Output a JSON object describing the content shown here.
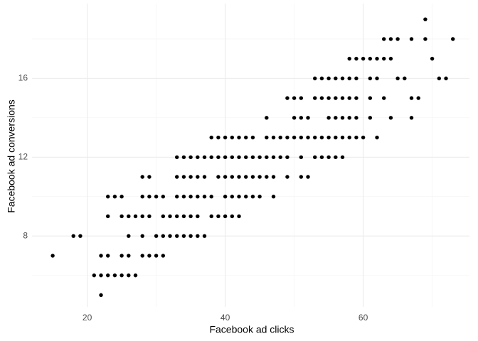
{
  "chart_data": {
    "type": "scatter",
    "x_label": "Facebook ad clicks",
    "y_label": "Facebook ad conversions",
    "xlim": [
      12,
      75.4
    ],
    "ylim": [
      4.4,
      19.8
    ],
    "xticks": [
      20,
      40,
      60
    ],
    "yticks": [
      8,
      12,
      16
    ],
    "x_minor_ticks": [
      30,
      50,
      70
    ],
    "y_minor_ticks": [
      6,
      10,
      14,
      18
    ],
    "grid": true,
    "series": [
      {
        "color": "#000000",
        "x": [
          69,
          63,
          64,
          65,
          67,
          69,
          73,
          58,
          59,
          60,
          61,
          62,
          63,
          64,
          70,
          53,
          54,
          55,
          56,
          57,
          58,
          59,
          61,
          62,
          65,
          66,
          71,
          72,
          49,
          50,
          51,
          53,
          54,
          55,
          56,
          57,
          58,
          59,
          61,
          63,
          67,
          68,
          46,
          50,
          51,
          52,
          55,
          56,
          57,
          58,
          59,
          61,
          64,
          67,
          38,
          39,
          40,
          41,
          42,
          43,
          44,
          46,
          47,
          48,
          49,
          50,
          51,
          52,
          53,
          54,
          55,
          56,
          57,
          58,
          59,
          60,
          62,
          33,
          34,
          35,
          36,
          37,
          38,
          39,
          40,
          41,
          42,
          43,
          44,
          45,
          46,
          47,
          48,
          49,
          51,
          53,
          54,
          55,
          56,
          57,
          28,
          29,
          33,
          34,
          35,
          36,
          37,
          39,
          40,
          41,
          42,
          43,
          44,
          45,
          46,
          47,
          49,
          51,
          52,
          23,
          24,
          25,
          28,
          29,
          30,
          31,
          33,
          34,
          35,
          36,
          37,
          38,
          40,
          41,
          42,
          43,
          44,
          45,
          47,
          23,
          25,
          26,
          27,
          28,
          29,
          31,
          32,
          33,
          34,
          35,
          36,
          38,
          39,
          40,
          41,
          42,
          18,
          19,
          26,
          28,
          30,
          31,
          32,
          33,
          34,
          35,
          36,
          37,
          15,
          22,
          23,
          25,
          26,
          28,
          29,
          30,
          31,
          21,
          22,
          23,
          24,
          25,
          26,
          27,
          22
        ],
        "y": [
          19,
          18,
          18,
          18,
          18,
          18,
          18,
          17,
          17,
          17,
          17,
          17,
          17,
          17,
          17,
          16,
          16,
          16,
          16,
          16,
          16,
          16,
          16,
          16,
          16,
          16,
          16,
          16,
          15,
          15,
          15,
          15,
          15,
          15,
          15,
          15,
          15,
          15,
          15,
          15,
          15,
          15,
          14,
          14,
          14,
          14,
          14,
          14,
          14,
          14,
          14,
          14,
          14,
          14,
          13,
          13,
          13,
          13,
          13,
          13,
          13,
          13,
          13,
          13,
          13,
          13,
          13,
          13,
          13,
          13,
          13,
          13,
          13,
          13,
          13,
          13,
          13,
          12,
          12,
          12,
          12,
          12,
          12,
          12,
          12,
          12,
          12,
          12,
          12,
          12,
          12,
          12,
          12,
          12,
          12,
          12,
          12,
          12,
          12,
          12,
          11,
          11,
          11,
          11,
          11,
          11,
          11,
          11,
          11,
          11,
          11,
          11,
          11,
          11,
          11,
          11,
          11,
          11,
          11,
          10,
          10,
          10,
          10,
          10,
          10,
          10,
          10,
          10,
          10,
          10,
          10,
          10,
          10,
          10,
          10,
          10,
          10,
          10,
          10,
          9,
          9,
          9,
          9,
          9,
          9,
          9,
          9,
          9,
          9,
          9,
          9,
          9,
          9,
          9,
          9,
          9,
          8,
          8,
          8,
          8,
          8,
          8,
          8,
          8,
          8,
          8,
          8,
          8,
          7,
          7,
          7,
          7,
          7,
          7,
          7,
          7,
          7,
          6,
          6,
          6,
          6,
          6,
          6,
          6,
          5
        ]
      }
    ]
  }
}
